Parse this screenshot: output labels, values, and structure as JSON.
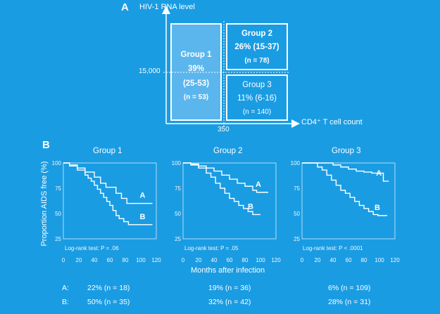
{
  "panel_a": {
    "letter": "A",
    "y_axis_title": "HIV-1 RNA level",
    "x_axis_title": "CD4⁺ T cell count",
    "y_threshold_label": "15,000",
    "x_threshold_label": "350",
    "group1": {
      "name": "Group 1",
      "pct": "39%",
      "ci": "(25-53)",
      "n": "(n = 53)"
    },
    "group2": {
      "name": "Group 2",
      "pct_ci": "26% (15-37)",
      "n": "(n = 78)"
    },
    "group3": {
      "name": "Group 3",
      "pct_ci": "11% (6-16)",
      "n": "(n = 140)"
    }
  },
  "panel_b": {
    "letter": "B",
    "y_axis_title": "Proportion AIDS free (%)",
    "x_axis_title": "Months after infection"
  },
  "footer": {
    "row_a_label": "A:",
    "row_b_label": "B:",
    "row_a": [
      "22% (n = 18)",
      "19% (n = 36)",
      "6% (n = 109)"
    ],
    "row_b": [
      "50% (n = 35)",
      "32% (n = 42)",
      "28% (n = 31)"
    ]
  },
  "chart_data": [
    {
      "type": "line",
      "title": "Group 1",
      "annotation": "Log-rank test: P = .06",
      "xlim": [
        0,
        120
      ],
      "ylim": [
        25,
        100
      ],
      "x_ticks": [
        0,
        20,
        40,
        60,
        80,
        100,
        120
      ],
      "y_ticks": [
        25,
        50,
        75,
        100
      ],
      "series": [
        {
          "name": "A",
          "x": [
            0,
            8,
            18,
            28,
            40,
            48,
            55,
            62,
            68,
            75,
            82,
            115
          ],
          "y": [
            100,
            98,
            95,
            91,
            86,
            80,
            76,
            76,
            70,
            65,
            60,
            60
          ]
        },
        {
          "name": "B",
          "x": [
            0,
            8,
            18,
            28,
            32,
            36,
            40,
            44,
            48,
            52,
            56,
            60,
            64,
            68,
            72,
            78,
            84,
            115
          ],
          "y": [
            100,
            97,
            93,
            88,
            85,
            82,
            78,
            74,
            70,
            66,
            62,
            58,
            53,
            48,
            45,
            42,
            39,
            39
          ]
        }
      ]
    },
    {
      "type": "line",
      "title": "Group 2",
      "annotation": "Log-rank test: P = .05",
      "xlim": [
        0,
        120
      ],
      "ylim": [
        25,
        100
      ],
      "x_ticks": [
        0,
        20,
        40,
        60,
        80,
        100,
        120
      ],
      "y_ticks": [
        25,
        50,
        75,
        100
      ],
      "series": [
        {
          "name": "A",
          "x": [
            0,
            10,
            20,
            30,
            40,
            50,
            60,
            70,
            80,
            90,
            95,
            110
          ],
          "y": [
            100,
            99,
            97,
            95,
            92,
            88,
            84,
            80,
            77,
            73,
            71,
            71
          ]
        },
        {
          "name": "B",
          "x": [
            0,
            10,
            20,
            30,
            36,
            42,
            48,
            54,
            60,
            66,
            72,
            78,
            84,
            90,
            100
          ],
          "y": [
            100,
            98,
            95,
            90,
            86,
            80,
            75,
            70,
            65,
            62,
            58,
            55,
            52,
            49,
            49
          ]
        }
      ]
    },
    {
      "type": "line",
      "title": "Group 3",
      "annotation": "Log-rank test: P < .0001",
      "xlim": [
        0,
        120
      ],
      "ylim": [
        25,
        100
      ],
      "x_ticks": [
        0,
        20,
        40,
        60,
        80,
        100,
        120
      ],
      "y_ticks": [
        25,
        50,
        75,
        100
      ],
      "series": [
        {
          "name": "A",
          "x": [
            0,
            20,
            40,
            50,
            60,
            70,
            80,
            90,
            100,
            105,
            112
          ],
          "y": [
            100,
            100,
            98,
            96,
            94,
            92,
            91,
            90,
            90,
            82,
            82
          ]
        },
        {
          "name": "B",
          "x": [
            0,
            20,
            26,
            32,
            38,
            44,
            50,
            56,
            62,
            68,
            74,
            80,
            86,
            92,
            98,
            110
          ],
          "y": [
            100,
            96,
            93,
            88,
            83,
            78,
            73,
            70,
            66,
            62,
            58,
            55,
            52,
            49,
            48,
            48
          ]
        }
      ]
    }
  ]
}
